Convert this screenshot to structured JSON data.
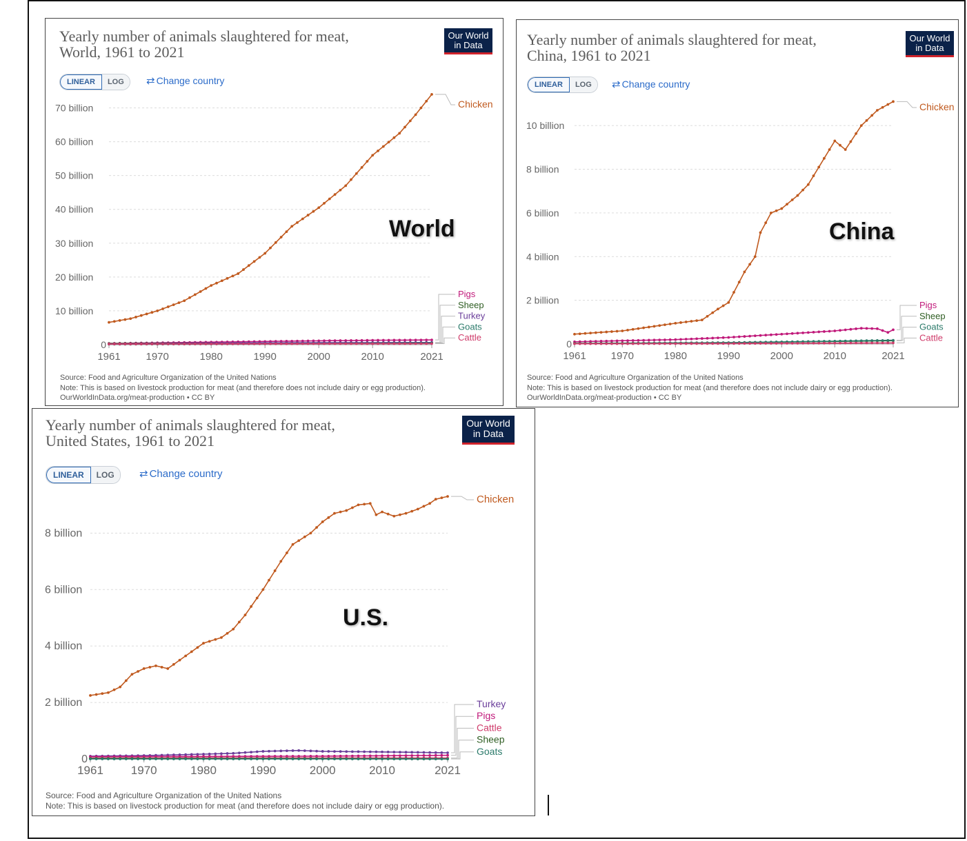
{
  "cursor": "cursor-bar",
  "colors": {
    "chicken": "#c05a1f",
    "pigs": "#c0197a",
    "sheep": "#2e5d22",
    "turkey": "#6a3d9a",
    "goats": "#2b7a6a",
    "cattle": "#cf3b6a",
    "logo_bg": "#0b2249",
    "logo_bar": "#d0232b",
    "link": "#2b6bc9"
  },
  "common": {
    "logo_line1": "Our World",
    "logo_line2": "in Data",
    "linear_label": "LINEAR",
    "log_label": "LOG",
    "change_country": "Change country",
    "change_icon": "swap-arrows-icon",
    "source": "Source: Food and Agriculture Organization of the United Nations",
    "note": "Note: This is based on livestock production for meat (and therefore does not include dairy or egg production).",
    "url": "OurWorldInData.org/meat-production • CC BY"
  },
  "panels": [
    {
      "title_line1": "Yearly number of animals slaughtered for meat,",
      "title_line2": "World, 1961 to 2021",
      "region_label": "World"
    },
    {
      "title_line1": "Yearly number of animals slaughtered for meat,",
      "title_line2": "China, 1961 to 2021",
      "region_label": "China"
    },
    {
      "title_line1": "Yearly number of animals slaughtered for meat,",
      "title_line2": "United States, 1961 to 2021",
      "region_label": "U.S."
    }
  ],
  "chart_data": [
    {
      "type": "line",
      "title": "Yearly number of animals slaughtered for meat, World, 1961 to 2021",
      "x_ticks": [
        1961,
        1970,
        1980,
        1990,
        2000,
        2010,
        2021
      ],
      "y_ticks": [
        0,
        10,
        20,
        30,
        40,
        50,
        60,
        70
      ],
      "y_tick_labels": [
        "0",
        "10 billion",
        "20 billion",
        "30 billion",
        "40 billion",
        "50 billion",
        "60 billion",
        "70 billion"
      ],
      "ylim": [
        0,
        75
      ],
      "xlim": [
        1961,
        2021
      ],
      "unit": "billion",
      "grid": true,
      "legend_order": [
        "Chicken",
        "Pigs",
        "Sheep",
        "Turkey",
        "Goats",
        "Cattle"
      ],
      "series": [
        {
          "name": "Chicken",
          "points": [
            [
              1961,
              6.6
            ],
            [
              1965,
              7.7
            ],
            [
              1970,
              10.0
            ],
            [
              1975,
              13.0
            ],
            [
              1980,
              17.5
            ],
            [
              1985,
              21.0
            ],
            [
              1990,
              27.0
            ],
            [
              1995,
              35.0
            ],
            [
              2000,
              40.5
            ],
            [
              2005,
              47.0
            ],
            [
              2010,
              56.0
            ],
            [
              2015,
              62.5
            ],
            [
              2018,
              68.0
            ],
            [
              2021,
              74.0
            ]
          ]
        },
        {
          "name": "Pigs",
          "points": [
            [
              1961,
              0.38
            ],
            [
              1970,
              0.55
            ],
            [
              1980,
              0.75
            ],
            [
              1990,
              0.95
            ],
            [
              2000,
              1.15
            ],
            [
              2010,
              1.3
            ],
            [
              2021,
              1.4
            ]
          ]
        },
        {
          "name": "Sheep",
          "points": [
            [
              1961,
              0.33
            ],
            [
              1980,
              0.45
            ],
            [
              2000,
              0.52
            ],
            [
              2021,
              0.6
            ]
          ]
        },
        {
          "name": "Turkey",
          "points": [
            [
              1961,
              0.2
            ],
            [
              1990,
              0.55
            ],
            [
              2021,
              0.65
            ]
          ]
        },
        {
          "name": "Goats",
          "points": [
            [
              1961,
              0.12
            ],
            [
              1990,
              0.25
            ],
            [
              2021,
              0.5
            ]
          ]
        },
        {
          "name": "Cattle",
          "points": [
            [
              1961,
              0.17
            ],
            [
              1990,
              0.26
            ],
            [
              2021,
              0.3
            ]
          ]
        }
      ]
    },
    {
      "type": "line",
      "title": "Yearly number of animals slaughtered for meat, China, 1961 to 2021",
      "x_ticks": [
        1961,
        1970,
        1980,
        1990,
        2000,
        2010,
        2021
      ],
      "y_ticks": [
        0,
        2,
        4,
        6,
        8,
        10
      ],
      "y_tick_labels": [
        "0",
        "2 billion",
        "4 billion",
        "6 billion",
        "8 billion",
        "10 billion"
      ],
      "ylim": [
        0,
        11.3
      ],
      "xlim": [
        1961,
        2021
      ],
      "unit": "billion",
      "grid": true,
      "legend_order": [
        "Chicken",
        "Pigs",
        "Sheep",
        "Goats",
        "Cattle"
      ],
      "series": [
        {
          "name": "Chicken",
          "points": [
            [
              1961,
              0.45
            ],
            [
              1970,
              0.6
            ],
            [
              1980,
              0.95
            ],
            [
              1985,
              1.1
            ],
            [
              1988,
              1.6
            ],
            [
              1990,
              1.9
            ],
            [
              1993,
              3.3
            ],
            [
              1995,
              4.0
            ],
            [
              1996,
              5.1
            ],
            [
              1998,
              6.0
            ],
            [
              2000,
              6.2
            ],
            [
              2003,
              6.8
            ],
            [
              2005,
              7.3
            ],
            [
              2008,
              8.5
            ],
            [
              2010,
              9.3
            ],
            [
              2012,
              8.9
            ],
            [
              2015,
              10.0
            ],
            [
              2018,
              10.7
            ],
            [
              2021,
              11.1
            ]
          ]
        },
        {
          "name": "Pigs",
          "points": [
            [
              1961,
              0.1
            ],
            [
              1970,
              0.15
            ],
            [
              1980,
              0.2
            ],
            [
              1990,
              0.3
            ],
            [
              2000,
              0.45
            ],
            [
              2010,
              0.6
            ],
            [
              2015,
              0.72
            ],
            [
              2018,
              0.7
            ],
            [
              2020,
              0.53
            ],
            [
              2021,
              0.65
            ]
          ]
        },
        {
          "name": "Sheep",
          "points": [
            [
              1961,
              0.03
            ],
            [
              1990,
              0.06
            ],
            [
              2021,
              0.15
            ]
          ]
        },
        {
          "name": "Goats",
          "points": [
            [
              1961,
              0.02
            ],
            [
              1990,
              0.06
            ],
            [
              2021,
              0.17
            ]
          ]
        },
        {
          "name": "Cattle",
          "points": [
            [
              1961,
              0.01
            ],
            [
              1990,
              0.02
            ],
            [
              2021,
              0.05
            ]
          ]
        }
      ]
    },
    {
      "type": "line",
      "title": "Yearly number of animals slaughtered for meat, United States, 1961 to 2021",
      "x_ticks": [
        1961,
        1970,
        1980,
        1990,
        2000,
        2010,
        2021
      ],
      "y_ticks": [
        0,
        2,
        4,
        6,
        8
      ],
      "y_tick_labels": [
        "0",
        "2 billion",
        "4 billion",
        "6 billion",
        "8 billion"
      ],
      "ylim": [
        0,
        9.4
      ],
      "xlim": [
        1961,
        2021
      ],
      "unit": "billion",
      "grid": true,
      "legend_order": [
        "Turkey",
        "Pigs",
        "Cattle",
        "Sheep",
        "Goats"
      ],
      "series": [
        {
          "name": "Chicken",
          "points": [
            [
              1961,
              2.25
            ],
            [
              1964,
              2.35
            ],
            [
              1966,
              2.55
            ],
            [
              1968,
              3.0
            ],
            [
              1970,
              3.2
            ],
            [
              1972,
              3.3
            ],
            [
              1974,
              3.2
            ],
            [
              1976,
              3.5
            ],
            [
              1978,
              3.8
            ],
            [
              1980,
              4.1
            ],
            [
              1983,
              4.3
            ],
            [
              1985,
              4.6
            ],
            [
              1987,
              5.1
            ],
            [
              1990,
              6.0
            ],
            [
              1993,
              7.0
            ],
            [
              1995,
              7.6
            ],
            [
              1998,
              8.0
            ],
            [
              2000,
              8.4
            ],
            [
              2002,
              8.7
            ],
            [
              2004,
              8.8
            ],
            [
              2006,
              9.0
            ],
            [
              2008,
              9.05
            ],
            [
              2009,
              8.65
            ],
            [
              2010,
              8.75
            ],
            [
              2012,
              8.6
            ],
            [
              2014,
              8.7
            ],
            [
              2016,
              8.85
            ],
            [
              2018,
              9.05
            ],
            [
              2019,
              9.2
            ],
            [
              2021,
              9.3
            ]
          ]
        },
        {
          "name": "Turkey",
          "points": [
            [
              1961,
              0.1
            ],
            [
              1970,
              0.12
            ],
            [
              1980,
              0.17
            ],
            [
              1985,
              0.2
            ],
            [
              1990,
              0.27
            ],
            [
              1996,
              0.3
            ],
            [
              2000,
              0.27
            ],
            [
              2010,
              0.25
            ],
            [
              2021,
              0.22
            ]
          ]
        },
        {
          "name": "Pigs",
          "points": [
            [
              1961,
              0.08
            ],
            [
              1980,
              0.09
            ],
            [
              2000,
              0.1
            ],
            [
              2021,
              0.13
            ]
          ]
        },
        {
          "name": "Cattle",
          "points": [
            [
              1961,
              0.03
            ],
            [
              1980,
              0.04
            ],
            [
              2021,
              0.035
            ]
          ]
        },
        {
          "name": "Sheep",
          "points": [
            [
              1961,
              0.015
            ],
            [
              2021,
              0.003
            ]
          ]
        },
        {
          "name": "Goats",
          "points": [
            [
              1961,
              0.001
            ],
            [
              2021,
              0.001
            ]
          ]
        }
      ]
    }
  ]
}
